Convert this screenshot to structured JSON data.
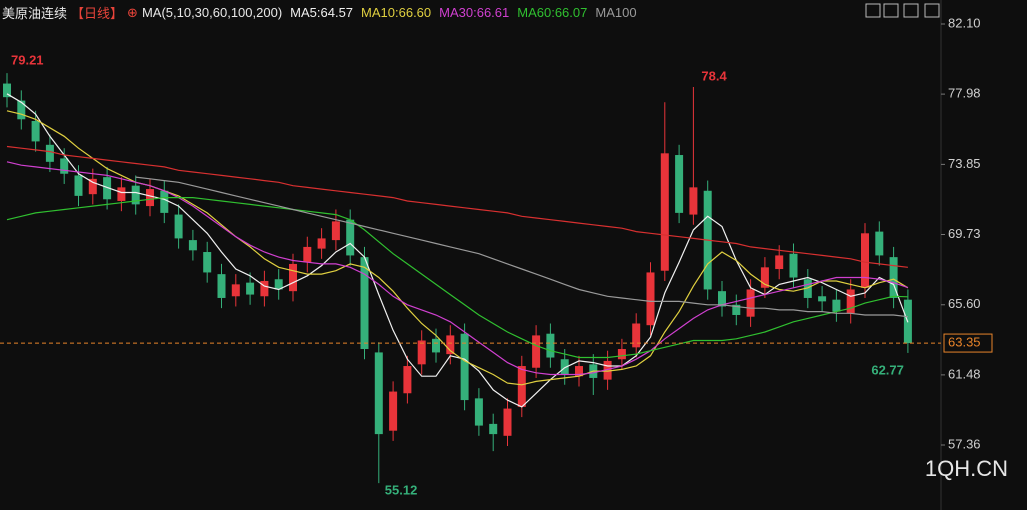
{
  "chart_data": {
    "type": "candlestick",
    "title": "美原油连续",
    "period": "【日线】",
    "indicator": "MA(5,10,30,60,100,200)",
    "watermark": "1QH.CN",
    "up_color": "#e8343a",
    "down_color": "#35b07a",
    "last_color": "#e8842a",
    "open": [
      78.6,
      77.6,
      76.4,
      75.0,
      74.2,
      73.2,
      72.1,
      73.1,
      71.7,
      72.6,
      71.4,
      72.3,
      70.9,
      69.4,
      68.7,
      67.4,
      66.1,
      66.9,
      66.1,
      67.1,
      66.4,
      68.1,
      68.9,
      69.4,
      70.6,
      68.4,
      62.8,
      58.2,
      60.4,
      62.1,
      63.6,
      62.7,
      63.9,
      60.1,
      58.6,
      57.9,
      59.6,
      61.9,
      63.9,
      62.4,
      61.4,
      62.1,
      61.2,
      62.4,
      63.1,
      64.4,
      67.6,
      74.4,
      70.9,
      72.3,
      66.4,
      65.6,
      64.9,
      66.6,
      67.7,
      68.6,
      67.1,
      66.1,
      65.9,
      65.1,
      66.6,
      69.9,
      68.4,
      65.9
    ],
    "high": [
      79.21,
      78.2,
      77.0,
      75.6,
      74.8,
      73.8,
      73.6,
      73.7,
      73.1,
      73.2,
      73.0,
      72.9,
      71.5,
      70.0,
      69.3,
      68.0,
      67.4,
      67.5,
      67.6,
      67.7,
      68.6,
      69.6,
      70.1,
      71.2,
      71.2,
      69.0,
      63.4,
      61.1,
      62.6,
      64.1,
      64.2,
      64.4,
      64.5,
      60.7,
      59.2,
      60.1,
      62.6,
      64.4,
      64.5,
      63.0,
      62.6,
      62.7,
      62.9,
      63.6,
      65.1,
      68.1,
      77.5,
      75.0,
      78.4,
      72.9,
      67.0,
      66.2,
      67.1,
      68.4,
      69.1,
      69.2,
      67.7,
      66.7,
      66.5,
      67.1,
      70.4,
      70.5,
      69.0,
      66.5
    ],
    "low": [
      77.2,
      75.9,
      74.6,
      73.4,
      72.7,
      71.4,
      71.5,
      71.2,
      71.1,
      70.9,
      70.8,
      70.4,
      68.9,
      68.2,
      66.9,
      65.4,
      65.5,
      65.6,
      65.5,
      65.9,
      65.8,
      67.5,
      68.3,
      68.8,
      67.9,
      62.4,
      55.12,
      57.6,
      59.8,
      61.5,
      62.2,
      62.1,
      59.4,
      57.9,
      57.0,
      57.3,
      59.0,
      61.3,
      61.9,
      60.9,
      60.8,
      60.3,
      60.6,
      61.8,
      62.5,
      63.8,
      67.0,
      70.4,
      70.3,
      65.9,
      64.9,
      64.4,
      64.3,
      66.0,
      67.1,
      66.6,
      65.4,
      65.2,
      64.6,
      64.5,
      66.0,
      67.9,
      65.4,
      62.77
    ],
    "close": [
      77.8,
      76.5,
      75.2,
      74.0,
      73.3,
      72.0,
      73.0,
      71.8,
      72.5,
      71.5,
      72.4,
      71.0,
      69.5,
      68.8,
      67.5,
      66.0,
      66.8,
      66.2,
      67.0,
      66.5,
      68.0,
      69.0,
      69.5,
      70.5,
      68.5,
      63.0,
      58.0,
      60.5,
      62.0,
      63.5,
      62.8,
      63.8,
      60.0,
      58.5,
      58.0,
      59.5,
      62.0,
      63.8,
      62.5,
      61.5,
      62.0,
      61.3,
      62.3,
      63.0,
      64.5,
      67.5,
      74.5,
      71.0,
      72.5,
      66.5,
      65.5,
      65.0,
      66.5,
      67.8,
      68.5,
      67.2,
      66.0,
      65.8,
      65.2,
      66.5,
      69.8,
      68.5,
      66.0,
      63.35
    ],
    "series": [
      {
        "name": "MA5:64.57",
        "color": "#f0f0f0",
        "values": [
          78.0,
          77.5,
          76.8,
          75.5,
          74.4,
          73.3,
          72.8,
          72.5,
          72.2,
          72.2,
          72.0,
          71.8,
          71.4,
          70.6,
          69.8,
          68.7,
          67.7,
          67.3,
          66.7,
          66.5,
          66.9,
          67.3,
          67.9,
          68.7,
          69.2,
          68.4,
          66.2,
          64.1,
          62.4,
          61.4,
          61.4,
          62.6,
          62.4,
          61.7,
          60.6,
          60.0,
          59.6,
          60.4,
          61.2,
          61.9,
          62.3,
          62.2,
          62.0,
          62.0,
          62.6,
          63.7,
          66.3,
          68.1,
          70.0,
          70.8,
          70.2,
          68.2,
          66.6,
          66.2,
          66.8,
          67.0,
          67.2,
          66.9,
          66.5,
          66.1,
          66.3,
          67.2,
          66.8,
          64.57
        ]
      },
      {
        "name": "MA10:66.60",
        "color": "#e0d040",
        "values": [
          77.0,
          76.8,
          76.5,
          76.0,
          75.5,
          74.8,
          74.2,
          73.6,
          73.2,
          72.8,
          72.6,
          72.3,
          72.0,
          71.5,
          71.0,
          70.3,
          69.6,
          69.0,
          68.3,
          67.8,
          67.6,
          67.4,
          67.4,
          67.6,
          68.0,
          67.8,
          67.2,
          66.4,
          65.4,
          64.5,
          63.8,
          62.9,
          62.3,
          61.9,
          61.5,
          61.0,
          60.9,
          61.1,
          61.2,
          61.3,
          61.4,
          61.7,
          61.7,
          61.8,
          62.0,
          62.6,
          64.0,
          65.2,
          66.7,
          68.0,
          68.7,
          68.2,
          67.4,
          66.8,
          66.5,
          66.4,
          66.6,
          67.0,
          67.0,
          66.8,
          66.6,
          66.9,
          67.1,
          66.6
        ]
      },
      {
        "name": "MA30:66.61",
        "color": "#d040d0",
        "values": [
          74.0,
          73.8,
          73.7,
          73.6,
          73.5,
          73.4,
          73.3,
          73.2,
          73.0,
          72.8,
          72.6,
          72.3,
          71.9,
          71.4,
          70.8,
          70.2,
          69.6,
          69.1,
          68.7,
          68.4,
          68.2,
          68.1,
          68.0,
          68.0,
          67.8,
          67.4,
          66.8,
          66.1,
          65.6,
          65.3,
          65.0,
          64.6,
          64.0,
          63.4,
          62.8,
          62.2,
          61.8,
          61.6,
          61.5,
          61.5,
          61.5,
          61.6,
          61.8,
          62.0,
          62.4,
          62.9,
          63.6,
          64.2,
          64.8,
          65.3,
          65.6,
          65.8,
          66.0,
          66.2,
          66.4,
          66.6,
          66.8,
          67.0,
          67.2,
          67.2,
          67.2,
          67.1,
          66.9,
          66.61
        ]
      },
      {
        "name": "MA60:66.07",
        "color": "#30c030",
        "values": [
          70.6,
          70.8,
          71.0,
          71.1,
          71.2,
          71.3,
          71.4,
          71.5,
          71.6,
          71.7,
          71.8,
          71.9,
          71.9,
          71.9,
          71.8,
          71.7,
          71.6,
          71.5,
          71.4,
          71.3,
          71.2,
          71.1,
          71.0,
          70.9,
          70.6,
          70.0,
          69.3,
          68.6,
          68.0,
          67.4,
          66.8,
          66.2,
          65.6,
          65.0,
          64.5,
          64.0,
          63.6,
          63.2,
          62.9,
          62.7,
          62.5,
          62.5,
          62.5,
          62.6,
          62.7,
          62.9,
          63.1,
          63.3,
          63.5,
          63.5,
          63.5,
          63.6,
          63.8,
          64.0,
          64.3,
          64.6,
          64.8,
          65.0,
          65.2,
          65.4,
          65.7,
          65.9,
          66.1,
          66.07
        ]
      },
      {
        "name": "MA100",
        "color": "#9a9a9a",
        "values": [
          null,
          null,
          null,
          null,
          null,
          null,
          null,
          null,
          null,
          73.1,
          73.0,
          72.9,
          72.8,
          72.6,
          72.4,
          72.2,
          72.0,
          71.8,
          71.6,
          71.4,
          71.2,
          71.0,
          70.8,
          70.6,
          70.4,
          70.2,
          70.0,
          69.8,
          69.6,
          69.4,
          69.2,
          69.0,
          68.8,
          68.6,
          68.3,
          68.0,
          67.7,
          67.4,
          67.1,
          66.8,
          66.5,
          66.3,
          66.1,
          66.0,
          65.9,
          65.8,
          65.8,
          65.8,
          65.7,
          65.6,
          65.6,
          65.5,
          65.4,
          65.4,
          65.3,
          65.3,
          65.2,
          65.2,
          65.1,
          65.1,
          65.0,
          65.0,
          65.0,
          64.9
        ]
      },
      {
        "color": "#d83030",
        "values": [
          74.9,
          74.8,
          74.7,
          74.6,
          74.4,
          74.3,
          74.2,
          74.1,
          74.0,
          73.9,
          73.8,
          73.7,
          73.5,
          73.4,
          73.3,
          73.2,
          73.1,
          73.0,
          72.9,
          72.8,
          72.6,
          72.5,
          72.4,
          72.3,
          72.2,
          72.1,
          72.0,
          71.9,
          71.7,
          71.6,
          71.5,
          71.4,
          71.3,
          71.2,
          71.1,
          71.0,
          70.8,
          70.7,
          70.6,
          70.5,
          70.4,
          70.3,
          70.2,
          70.1,
          69.9,
          69.8,
          69.7,
          69.6,
          69.5,
          69.4,
          69.3,
          69.2,
          69.0,
          68.9,
          68.8,
          68.7,
          68.6,
          68.5,
          68.4,
          68.3,
          68.1,
          68.0,
          67.9,
          67.8
        ]
      }
    ],
    "ylim": [
      53.54,
      83.51
    ],
    "yticks": [
      {
        "value": 82.1,
        "label": "82.10"
      },
      77.98,
      73.85,
      69.73,
      {
        "value": 65.6,
        "label": "65.60"
      },
      61.48,
      57.36
    ],
    "grid": false
  }
}
